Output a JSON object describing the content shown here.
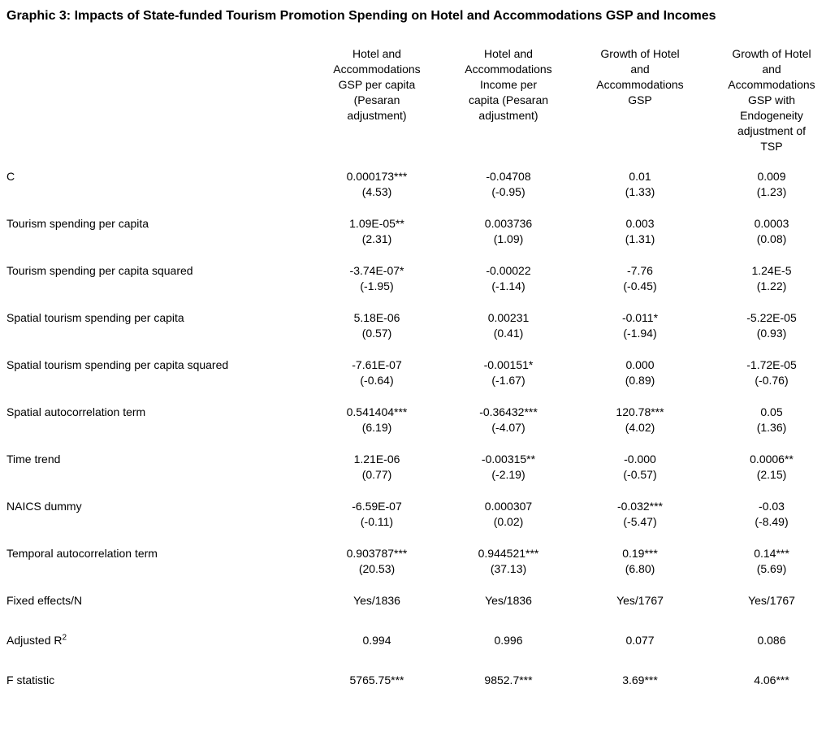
{
  "page": {
    "title": "Graphic 3: Impacts of State-funded Tourism Promotion Spending on Hotel and Accommodations GSP and Incomes"
  },
  "colors": {
    "text": "#000000",
    "background": "#ffffff"
  },
  "table": {
    "columns": [
      "Hotel and\nAccommodations\nGSP per capita\n(Pesaran\nadjustment)",
      "Hotel and\nAccommodations\nIncome per\ncapita (Pesaran\nadjustment)",
      "Growth of Hotel\nand\nAccommodations\nGSP",
      "Growth of Hotel\nand\nAccommodations\nGSP with\nEndogeneity\nadjustment of\nTSP"
    ],
    "rows": [
      {
        "label": "C",
        "values": [
          "0.000173***",
          "-0.04708",
          "0.01",
          "0.009"
        ],
        "tstats": [
          "(4.53)",
          "(-0.95)",
          "(1.33)",
          "(1.23)"
        ]
      },
      {
        "label": "Tourism spending per capita",
        "values": [
          "1.09E-05**",
          "0.003736",
          "0.003",
          "0.0003"
        ],
        "tstats": [
          "(2.31)",
          "(1.09)",
          "(1.31)",
          "(0.08)"
        ]
      },
      {
        "label": "Tourism spending per capita squared",
        "values": [
          "-3.74E-07*",
          "-0.00022",
          "-7.76",
          "1.24E-5"
        ],
        "tstats": [
          "(-1.95)",
          "(-1.14)",
          "(-0.45)",
          "(1.22)"
        ]
      },
      {
        "label": "Spatial tourism spending per capita",
        "values": [
          "5.18E-06",
          "0.00231",
          "-0.011*",
          "-5.22E-05"
        ],
        "tstats": [
          "(0.57)",
          "(0.41)",
          "(-1.94)",
          "(0.93)"
        ]
      },
      {
        "label": "Spatial tourism spending per capita squared",
        "values": [
          "-7.61E-07",
          "-0.00151*",
          "0.000",
          "-1.72E-05"
        ],
        "tstats": [
          "(-0.64)",
          "(-1.67)",
          "(0.89)",
          "(-0.76)"
        ]
      },
      {
        "label": "Spatial autocorrelation term",
        "values": [
          "0.541404***",
          "-0.36432***",
          "120.78***",
          "0.05"
        ],
        "tstats": [
          "(6.19)",
          "(-4.07)",
          "(4.02)",
          "(1.36)"
        ]
      },
      {
        "label": "Time trend",
        "values": [
          "1.21E-06",
          "-0.00315**",
          "-0.000",
          "0.0006**"
        ],
        "tstats": [
          "(0.77)",
          "(-2.19)",
          "(-0.57)",
          "(2.15)"
        ]
      },
      {
        "label": "NAICS dummy",
        "values": [
          "-6.59E-07",
          "0.000307",
          "-0.032***",
          "-0.03"
        ],
        "tstats": [
          "(-0.11)",
          "(0.02)",
          "(-5.47)",
          "(-8.49)"
        ]
      },
      {
        "label": "Temporal autocorrelation term",
        "values": [
          "0.903787***",
          "0.944521***",
          "0.19***",
          "0.14***"
        ],
        "tstats": [
          "(20.53)",
          "(37.13)",
          "(6.80)",
          "(5.69)"
        ]
      },
      {
        "label": "Fixed effects/N",
        "values": [
          "Yes/1836",
          "Yes/1836",
          "Yes/1767",
          "Yes/1767"
        ]
      },
      {
        "label": "Adjusted R",
        "label_sup": "2",
        "values": [
          "0.994",
          "0.996",
          "0.077",
          "0.086"
        ]
      },
      {
        "label": "F statistic",
        "values": [
          "5765.75***",
          "9852.7***",
          "3.69***",
          "4.06***"
        ]
      }
    ]
  }
}
